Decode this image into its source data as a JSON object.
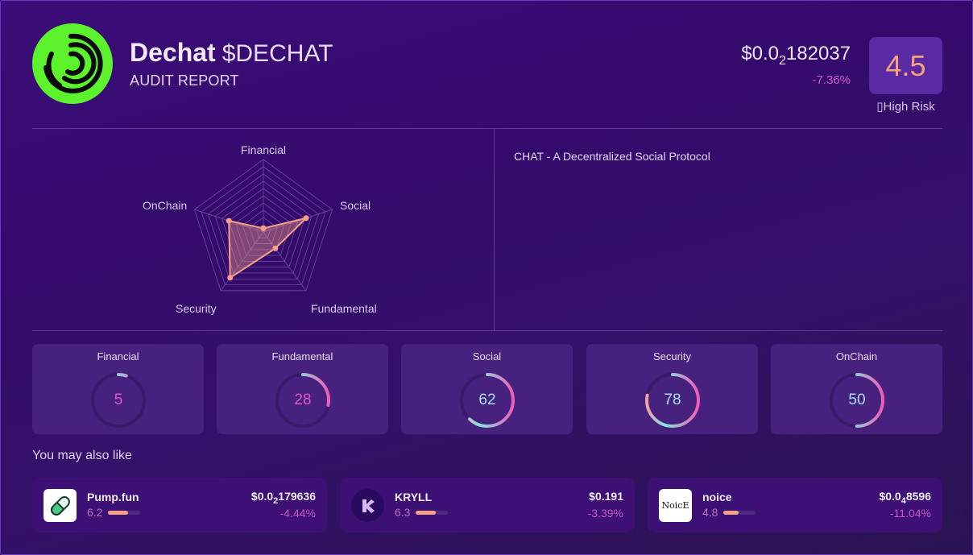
{
  "header": {
    "token_name": "Dechat",
    "ticker": "$DECHAT",
    "subtitle": "AUDIT REPORT",
    "price_prefix": "$0.0",
    "price_zero_count": "2",
    "price_digits": "182037",
    "price_change": "-7.36%",
    "score": "4.5",
    "risk_label": "▯High Risk",
    "logo_icon": "dechat-logo-icon"
  },
  "description": "CHAT - A Decentralized Social Protocol",
  "chart_data": {
    "type": "radar",
    "title": "",
    "axes": [
      "Financial",
      "Social",
      "Fundamental",
      "Security",
      "OnChain"
    ],
    "values": [
      5,
      62,
      28,
      78,
      50
    ],
    "range": [
      0,
      100
    ],
    "grid_levels": 10,
    "colors": {
      "fill": "#f7a088",
      "stroke": "#f7a088",
      "grid": "#6a4aa0"
    }
  },
  "radar_labels": {
    "financial": "Financial",
    "social": "Social",
    "fundamental": "Fundamental",
    "security": "Security",
    "onchain": "OnChain"
  },
  "scores": [
    {
      "label": "Financial",
      "value": "5",
      "value_color": "#e357c4"
    },
    {
      "label": "Fundamental",
      "value": "28",
      "value_color": "#e357c4"
    },
    {
      "label": "Social",
      "value": "62",
      "value_color": "#a7dff0"
    },
    {
      "label": "Security",
      "value": "78",
      "value_color": "#a7dff0"
    },
    {
      "label": "OnChain",
      "value": "50",
      "value_color": "#a7dff0"
    }
  ],
  "recommendations_title": "You may also like",
  "recommendations": [
    {
      "name": "Pump.fun",
      "score": "6.2",
      "score_pct": 62,
      "price_prefix": "$0.0",
      "price_zero_count": "2",
      "price_digits": "179636",
      "change": "-4.44%",
      "icon": "pill-icon"
    },
    {
      "name": "KRYLL",
      "score": "6.3",
      "score_pct": 63,
      "price_prefix": "$0.191",
      "price_zero_count": "",
      "price_digits": "",
      "change": "-3.39%",
      "icon": "kryll-logo-icon"
    },
    {
      "name": "noice",
      "score": "4.8",
      "score_pct": 48,
      "price_prefix": "$0.0",
      "price_zero_count": "4",
      "price_digits": "8596",
      "change": "-11.04%",
      "icon": "noice-logo-icon",
      "icon_text": "NoicE"
    }
  ],
  "colors": {
    "accent_orange": "#f7a37a",
    "negative": "#d05ad0",
    "logo_green": "#5cf22c",
    "gauge_teal": "#7ee8e0",
    "gauge_pink": "#f25bb8"
  }
}
